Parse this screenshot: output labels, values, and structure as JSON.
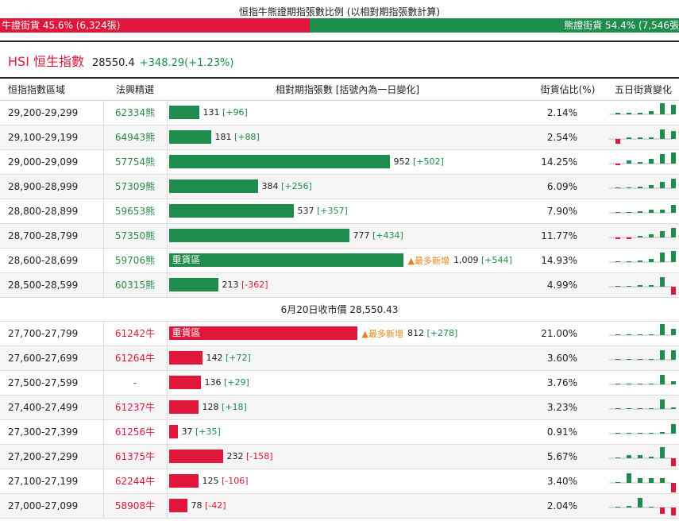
{
  "ratio": {
    "title": "恒指牛熊證期指張數比例 (以相對期指張數計算)",
    "bull_label": "牛證街貨 45.6% (6,324張)",
    "bear_label": "熊證街貨 54.4% (7,546張",
    "bull_pct": 45.6
  },
  "index": {
    "name": "HSI 恒生指數",
    "price": "28550.4",
    "change": "+348.29(+1.23%)"
  },
  "headers": {
    "range": "恒指指數區域",
    "pick": "法興精選",
    "contracts": "相對期指張數 [括號內為一日變化]",
    "share": "街貨佔比(%)",
    "spark": "五日街貨變化"
  },
  "colors": {
    "bull": "#e0173b",
    "bear": "#1e8c4c",
    "flag": "#e8811a"
  },
  "bear_rows": [
    {
      "range": "29,200-29,299",
      "code": "62334熊",
      "count": "131",
      "delta": "[+96]",
      "value": 131,
      "share": "2.14%",
      "spark": [
        1,
        1,
        1,
        2,
        7,
        6
      ]
    },
    {
      "range": "29,100-29,199",
      "code": "64943熊",
      "count": "181",
      "delta": "[+88]",
      "value": 181,
      "share": "2.54%",
      "spark": [
        -3,
        1,
        1,
        1,
        6,
        5
      ]
    },
    {
      "range": "29,000-29,099",
      "code": "57754熊",
      "count": "952",
      "delta": "[+502]",
      "value": 952,
      "share": "14.25%",
      "spark": [
        -1,
        2,
        1,
        3,
        6,
        7
      ]
    },
    {
      "range": "28,900-28,999",
      "code": "57309熊",
      "count": "384",
      "delta": "[+256]",
      "value": 384,
      "share": "6.09%",
      "spark": [
        0,
        0,
        1,
        2,
        4,
        6
      ]
    },
    {
      "range": "28,800-28,899",
      "code": "59653熊",
      "count": "537",
      "delta": "[+357]",
      "value": 537,
      "share": "7.90%",
      "spark": [
        0,
        0,
        1,
        2,
        2,
        5
      ]
    },
    {
      "range": "28,700-28,799",
      "code": "57350熊",
      "count": "777",
      "delta": "[+434]",
      "value": 777,
      "share": "11.77%",
      "spark": [
        -1,
        -1,
        1,
        2,
        4,
        6
      ]
    },
    {
      "range": "28,600-28,699",
      "code": "59706熊",
      "count": "1,009",
      "delta": "[+544]",
      "value": 1009,
      "share": "14.93%",
      "spark": [
        0,
        0,
        1,
        2,
        6,
        7
      ],
      "heavy": "重貨區",
      "flag": "▲最多新增"
    },
    {
      "range": "28,500-28,599",
      "code": "60315熊",
      "count": "213",
      "delta": "[-362]",
      "value": 213,
      "share": "4.99%",
      "spark": [
        0,
        0,
        1,
        1,
        6,
        -5
      ]
    }
  ],
  "separator": "6月20日收市價 28,550.43",
  "bull_rows": [
    {
      "range": "27,700-27,799",
      "code": "61242牛",
      "count": "812",
      "delta": "[+278]",
      "value": 812,
      "share": "21.00%",
      "spark": [
        0,
        0,
        0,
        0,
        7,
        4
      ],
      "heavy": "重貨區",
      "flag": "▲最多新增"
    },
    {
      "range": "27,600-27,699",
      "code": "61264牛",
      "count": "142",
      "delta": "[+72]",
      "value": 142,
      "share": "3.60%",
      "spark": [
        0,
        0,
        0,
        0,
        6,
        6
      ]
    },
    {
      "range": "27,500-27,599",
      "code": "-",
      "count": "136",
      "delta": "[+29]",
      "value": 136,
      "share": "3.76%",
      "spark": [
        0,
        0,
        0,
        0,
        6,
        2
      ]
    },
    {
      "range": "27,400-27,499",
      "code": "61237牛",
      "count": "128",
      "delta": "[+18]",
      "value": 128,
      "share": "3.23%",
      "spark": [
        0,
        0,
        0,
        0,
        6,
        1
      ]
    },
    {
      "range": "27,300-27,399",
      "code": "61256牛",
      "count": "37",
      "delta": "[+35]",
      "value": 37,
      "share": "0.91%",
      "spark": [
        0,
        0,
        0,
        0,
        1,
        6
      ]
    },
    {
      "range": "27,200-27,299",
      "code": "61375牛",
      "count": "232",
      "delta": "[-158]",
      "value": 232,
      "share": "5.67%",
      "spark": [
        0,
        2,
        2,
        1,
        7,
        -5
      ]
    },
    {
      "range": "27,100-27,199",
      "code": "62244牛",
      "count": "125",
      "delta": "[-106]",
      "value": 125,
      "share": "3.40%",
      "spark": [
        0,
        6,
        3,
        3,
        3,
        -6
      ]
    },
    {
      "range": "27,000-27,099",
      "code": "58908牛",
      "count": "78",
      "delta": "[-42]",
      "value": 78,
      "share": "2.04%",
      "spark": [
        0,
        1,
        6,
        0,
        -4,
        -5
      ]
    }
  ]
}
